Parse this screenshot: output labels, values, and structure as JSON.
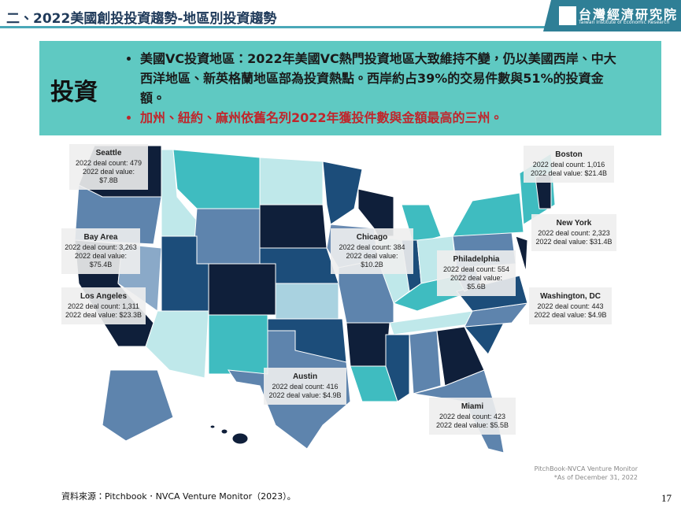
{
  "header": {
    "title": "二、2022美國創投投資趨勢-地區別投資趨勢",
    "logo_name": "台灣經濟研究院",
    "logo_subtitle": "Taiwan Institute of Economic Research"
  },
  "summary": {
    "label": "投資",
    "bullets": [
      "美國VC投資地區：2022年美國VC熱門投資地區大致維持不變，仍以美國西岸、中大西洋地區、新英格蘭地區部為投資熱點。西岸約占39%的交易件數與51%的投資金額。",
      "加州、紐約、麻州依舊名列2022年獲投件數與金額最高的三州。"
    ]
  },
  "map": {
    "callouts": [
      {
        "city": "Seattle",
        "count": "2022 deal count: 479",
        "value": "2022 deal value: $7.8B"
      },
      {
        "city": "Bay Area",
        "count": "2022 deal count: 3,263",
        "value": "2022 deal value: $75.4B"
      },
      {
        "city": "Los Angeles",
        "count": "2022 deal count: 1,311",
        "value": "2022 deal value: $23.3B"
      },
      {
        "city": "Chicago",
        "count": "2022 deal count: 384",
        "value": "2022 deal value: $10.2B"
      },
      {
        "city": "Philadelphia",
        "count": "2022 deal count: 554",
        "value": "2022 deal value: $5.6B"
      },
      {
        "city": "Boston",
        "count": "2022 deal count: 1,016",
        "value": "2022 deal value: $21.4B"
      },
      {
        "city": "New York",
        "count": "2022 deal count: 2,323",
        "value": "2022 deal value: $31.4B"
      },
      {
        "city": "Washington, DC",
        "count": "2022 deal count: 443",
        "value": "2022 deal value: $4.9B"
      },
      {
        "city": "Austin",
        "count": "2022 deal count: 416",
        "value": "2022 deal value: $4.9B"
      },
      {
        "city": "Miami",
        "count": "2022 deal count: 423",
        "value": "2022 deal value: $5.5B"
      }
    ],
    "credit": "PitchBook-NVCA Venture Monitor",
    "as_of": "*As of December 31, 2022"
  },
  "footer": {
    "source": "資料來源：Pitchbook．NVCA Venture Monitor（2023）。",
    "page": "17"
  }
}
